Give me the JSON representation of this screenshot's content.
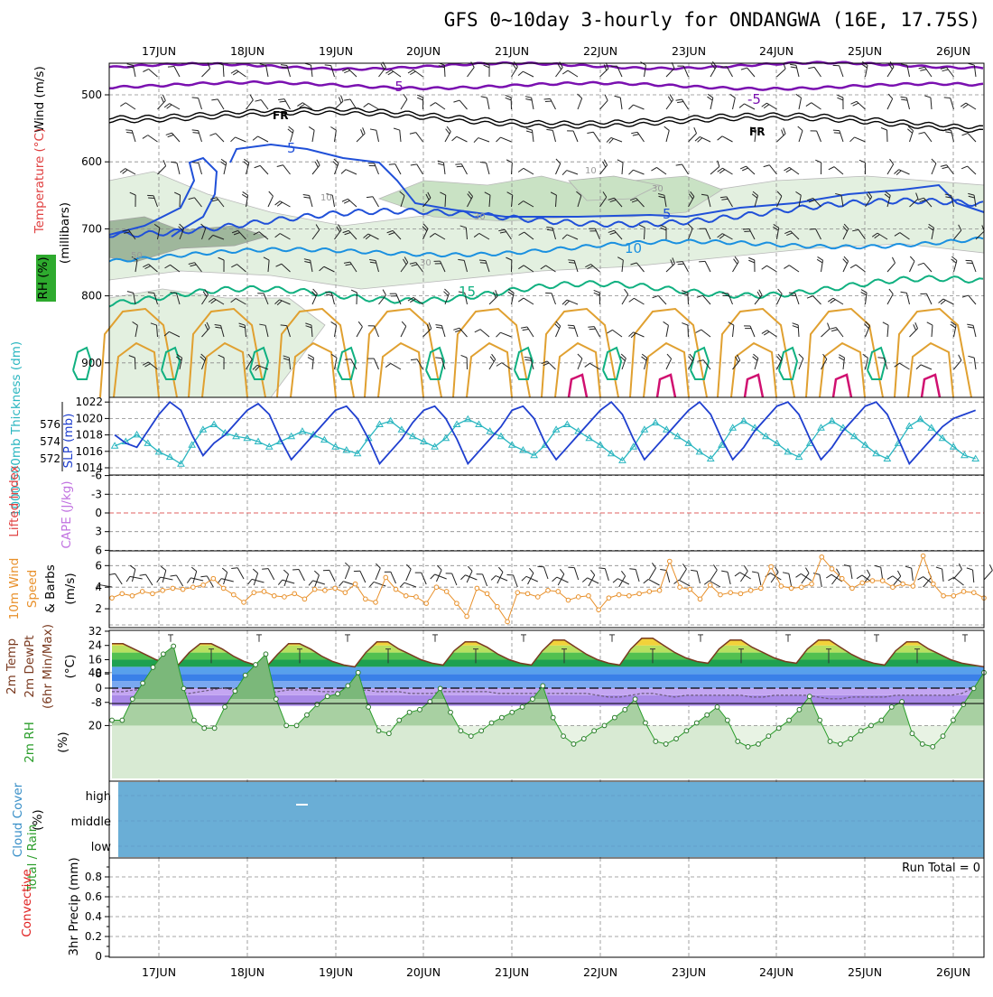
{
  "title": "GFS 0~10day 3-hourly for ONDANGWA (16E, 17.75S)",
  "dates": [
    "17JUN",
    "18JUN",
    "19JUN",
    "20JUN",
    "21JUN",
    "22JUN",
    "23JUN",
    "24JUN",
    "25JUN",
    "26JUN"
  ],
  "colors": {
    "slp": "#1f3fcf",
    "thickness": "#2ab6c0",
    "wind_speed": "#e8902a",
    "rh_line": "#2a9d2a",
    "cloud": "#6aaed6",
    "lifted_zero": "#e06060",
    "temp_purple": "#7a10b0",
    "temp_blue": "#2050d8",
    "temp_lightblue": "#1a90e0",
    "temp_green": "#10b080",
    "temp_orange": "#e0a030",
    "temp_red": "#c02020",
    "temp_magenta": "#d01070"
  },
  "panels": {
    "upper": {
      "label_wind": "Wind (m/s)",
      "label_temp": "Temperature (°C)",
      "label_rh": "RH (%)",
      "ylabel": "(millibars)",
      "ticks": [
        "500",
        "600",
        "700",
        "800",
        "900"
      ],
      "contour_labels": {
        "m5": "-5",
        "fr": "FR",
        "p5": "5",
        "p10": "10",
        "p15": "15",
        "rh10": "10",
        "rh30": "30",
        "rh50": "50"
      }
    },
    "slp": {
      "label_thick": "1000-500mb Thickness (dm)",
      "label_slp": "SLP (mb)",
      "left_ticks": [
        "576",
        "574",
        "572"
      ],
      "right_ticks": [
        "1022",
        "1020",
        "1018",
        "1016",
        "1014"
      ]
    },
    "lifted": {
      "label_li": "Lifted Index",
      "label_cape": "CAPE (J/kg)",
      "ticks": [
        "-6",
        "-3",
        "0",
        "3",
        "6"
      ]
    },
    "wind10m": {
      "label_a": "10m Wind",
      "label_b": "Speed",
      "label_c": "& Barbs",
      "ylabel": "(m/s)",
      "ticks": [
        "6",
        "4",
        "2"
      ]
    },
    "temp2m": {
      "label_a": "2m Temp",
      "label_b": "2m DewPt",
      "label_c": "(6hr Min/Max)",
      "ylabel": "(°C)",
      "ticks": [
        "32",
        "24",
        "16",
        "8",
        "0",
        "-8"
      ]
    },
    "rh2m": {
      "label": "2m RH",
      "ylabel": "(%)",
      "ticks": [
        "40",
        "20"
      ]
    },
    "cloud": {
      "label": "Cloud Cover",
      "ylabel": "(%)",
      "levels": [
        "high",
        "middle",
        "low"
      ]
    },
    "precip": {
      "label_a": "Total / Rain",
      "label_b": "Convective",
      "ylabel": "3hr Precip (mm)",
      "ticks": [
        "0.8",
        "0.6",
        "0.4",
        "0.2",
        "0"
      ],
      "run_total": "Run Total = 0"
    }
  },
  "chart_data": [
    {
      "type": "line",
      "title": "SLP (mb) and 1000-500mb Thickness (dm)",
      "x": [
        "16JUN12",
        "16JUN15",
        "16JUN18",
        "16JUN21",
        "17JUN00",
        "17JUN03",
        "17JUN06",
        "17JUN09",
        "17JUN12",
        "17JUN15",
        "17JUN18",
        "17JUN21",
        "18JUN00",
        "18JUN03",
        "18JUN06",
        "18JUN09",
        "18JUN12",
        "18JUN15",
        "18JUN18",
        "18JUN21",
        "19JUN00",
        "19JUN03",
        "19JUN06",
        "19JUN09",
        "19JUN12",
        "19JUN15",
        "19JUN18",
        "19JUN21",
        "20JUN00",
        "20JUN03",
        "20JUN06",
        "20JUN09",
        "20JUN12",
        "20JUN15",
        "20JUN18",
        "20JUN21",
        "21JUN00",
        "21JUN03",
        "21JUN06",
        "21JUN09",
        "21JUN12",
        "21JUN15",
        "21JUN18",
        "21JUN21",
        "22JUN00",
        "22JUN03",
        "22JUN06",
        "22JUN09",
        "22JUN12",
        "22JUN15",
        "22JUN18",
        "22JUN21",
        "23JUN00",
        "23JUN03",
        "23JUN06",
        "23JUN09",
        "23JUN12",
        "23JUN15",
        "23JUN18",
        "23JUN21",
        "24JUN00",
        "24JUN03",
        "24JUN06",
        "24JUN09",
        "24JUN12",
        "24JUN15",
        "24JUN18",
        "24JUN21",
        "25JUN00",
        "25JUN03",
        "25JUN06",
        "25JUN09",
        "25JUN12",
        "25JUN15",
        "25JUN18",
        "25JUN21",
        "26JUN00",
        "26JUN03",
        "26JUN06"
      ],
      "series": [
        {
          "name": "SLP (mb)",
          "axis": "right",
          "values": [
            1018.0,
            1017.0,
            1016.5,
            1018.5,
            1020.5,
            1022.0,
            1021.0,
            1018.0,
            1015.5,
            1017.0,
            1018.0,
            1019.5,
            1021.0,
            1021.8,
            1020.5,
            1017.5,
            1015.0,
            1016.5,
            1018.0,
            1019.5,
            1021.0,
            1021.5,
            1020.0,
            1017.5,
            1014.5,
            1016.0,
            1017.5,
            1019.5,
            1021.0,
            1021.5,
            1020.0,
            1017.5,
            1014.5,
            1016.0,
            1017.5,
            1019.0,
            1021.0,
            1021.5,
            1020.0,
            1017.0,
            1015.0,
            1016.5,
            1018.0,
            1019.5,
            1021.0,
            1022.0,
            1020.5,
            1017.5,
            1015.0,
            1016.5,
            1018.0,
            1019.5,
            1021.0,
            1022.0,
            1020.5,
            1017.5,
            1015.0,
            1016.5,
            1018.5,
            1020.0,
            1021.5,
            1022.0,
            1020.5,
            1017.5,
            1015.0,
            1016.5,
            1018.5,
            1020.0,
            1021.5,
            1022.0,
            1020.5,
            1017.5,
            1014.5,
            1016.0,
            1017.5,
            1019.0,
            1020.0,
            1020.5,
            1021.0
          ]
        },
        {
          "name": "1000-500mb Thickness (dm)",
          "axis": "left",
          "values": [
            573.5,
            574.0,
            574.8,
            573.8,
            572.8,
            572.2,
            571.4,
            573.6,
            575.4,
            576.0,
            575.0,
            574.6,
            574.4,
            574.0,
            573.4,
            574.0,
            574.6,
            575.2,
            574.8,
            574.2,
            573.4,
            573.0,
            572.6,
            574.4,
            576.0,
            576.4,
            575.4,
            574.6,
            574.0,
            573.4,
            574.4,
            576.0,
            576.6,
            576.0,
            575.2,
            574.6,
            573.6,
            573.0,
            572.4,
            573.6,
            575.4,
            576.0,
            575.2,
            574.4,
            573.6,
            572.6,
            571.8,
            573.4,
            575.4,
            576.2,
            575.4,
            574.6,
            573.8,
            572.8,
            572.0,
            573.6,
            575.6,
            576.4,
            575.6,
            574.6,
            573.8,
            572.8,
            572.2,
            573.8,
            575.6,
            576.4,
            575.6,
            574.6,
            573.6,
            572.6,
            572.0,
            573.8,
            575.8,
            576.6,
            575.6,
            574.4,
            573.4,
            572.4,
            572.0
          ]
        }
      ],
      "ylim_left": [
        571,
        577
      ],
      "ylim_right": [
        1013,
        1023
      ]
    },
    {
      "type": "line",
      "title": "10m Wind Speed (m/s)",
      "x_start": "16JUN12",
      "x_step_hours": 3,
      "series": [
        {
          "name": "10m Wind Speed",
          "values": [
            3.0,
            3.4,
            3.2,
            3.6,
            3.4,
            3.7,
            3.9,
            3.8,
            4.0,
            4.2,
            4.8,
            3.9,
            3.3,
            2.6,
            3.5,
            3.6,
            3.2,
            3.1,
            3.4,
            2.9,
            3.8,
            3.7,
            3.9,
            3.5,
            4.3,
            2.9,
            2.6,
            4.9,
            3.8,
            3.2,
            3.1,
            2.5,
            4.0,
            3.6,
            2.5,
            1.3,
            3.9,
            3.4,
            2.2,
            0.8,
            3.5,
            3.4,
            3.1,
            3.7,
            3.6,
            2.8,
            3.1,
            3.2,
            1.9,
            3.0,
            3.3,
            3.2,
            3.4,
            3.6,
            3.7,
            6.4,
            4.0,
            3.8,
            2.9,
            4.2,
            3.3,
            3.5,
            3.4,
            3.7,
            3.9,
            5.9,
            4.1,
            3.9,
            4.0,
            4.3,
            6.8,
            5.7,
            4.8,
            3.9,
            4.4,
            4.6,
            4.6,
            4.0,
            4.3,
            4.1,
            6.9,
            4.3,
            3.2,
            3.2,
            3.6,
            3.5,
            3.0
          ]
        }
      ],
      "ylim": [
        0,
        7
      ]
    },
    {
      "type": "area",
      "title": "2m Temp / 2m DewPt (°C)",
      "x_start": "16JUN12",
      "x_step_hours": 3,
      "series": [
        {
          "name": "2m Temp",
          "values": [
            25,
            25,
            22,
            19,
            16,
            14,
            13,
            20,
            25,
            25,
            22,
            18,
            15,
            13,
            12,
            19,
            25,
            25,
            22,
            18,
            15,
            13,
            12,
            20,
            26,
            26,
            22,
            19,
            16,
            14,
            13,
            21,
            26,
            26,
            23,
            19,
            16,
            14,
            13,
            21,
            27,
            27,
            23,
            19,
            16,
            14,
            13,
            22,
            28,
            28,
            24,
            20,
            17,
            15,
            14,
            22,
            27,
            27,
            23,
            20,
            17,
            15,
            14,
            22,
            27,
            27,
            23,
            19,
            16,
            14,
            13,
            21,
            26,
            26,
            22,
            19,
            16,
            14,
            13,
            12
          ]
        },
        {
          "name": "2m DewPt",
          "values": [
            -2,
            -2,
            -1,
            -1,
            -1,
            -2,
            -2,
            -3,
            -2,
            -1,
            0,
            -1,
            -2,
            -3,
            -3,
            -2,
            -1,
            -1,
            -1,
            -2,
            -2,
            -2,
            -2,
            -1,
            -2,
            -2,
            -2,
            -3,
            -3,
            -3,
            -2,
            -2,
            -2,
            -2,
            -2,
            -3,
            -3,
            -3,
            -3,
            -3,
            -3,
            -3,
            -3,
            -3,
            -4,
            -5,
            -5,
            -4,
            -3,
            -3,
            -4,
            -5,
            -4,
            -4,
            -4,
            -4,
            -4,
            -4,
            -5,
            -5,
            -4,
            -4,
            -4,
            -4,
            -5,
            -6,
            -6,
            -5,
            -5,
            -5,
            -5,
            -4,
            -4,
            -4,
            -4,
            -4,
            -4,
            -3,
            0
          ]
        }
      ],
      "ylim": [
        -10,
        34
      ]
    },
    {
      "type": "area",
      "title": "2m RH (%)",
      "x_start": "16JUN12",
      "x_step_hours": 3,
      "series": [
        {
          "name": "2m RH",
          "values": [
            22,
            22,
            30,
            36,
            42,
            47,
            50,
            34,
            22,
            19,
            19,
            27,
            33,
            39,
            43,
            47,
            30,
            20,
            20,
            24,
            28,
            31,
            32,
            35,
            40,
            27,
            18,
            17,
            22,
            25,
            26,
            29,
            34,
            25,
            18,
            16,
            18,
            21,
            23,
            25,
            27,
            30,
            35,
            23,
            16,
            13,
            15,
            18,
            20,
            23,
            26,
            30,
            21,
            14,
            13,
            15,
            18,
            21,
            24,
            27,
            22,
            14,
            12,
            13,
            16,
            19,
            22,
            26,
            31,
            22,
            14,
            13,
            15,
            18,
            20,
            22,
            27,
            29,
            17,
            13,
            12,
            16,
            22,
            28,
            34,
            40
          ]
        }
      ],
      "ylim": [
        0,
        50
      ]
    },
    {
      "type": "line",
      "title": "3hr Precip (mm)",
      "series": [
        {
          "name": "Total / Rain",
          "values": [
            0
          ]
        },
        {
          "name": "Convective",
          "values": [
            0
          ]
        }
      ],
      "ylim": [
        0,
        0.9
      ]
    }
  ]
}
